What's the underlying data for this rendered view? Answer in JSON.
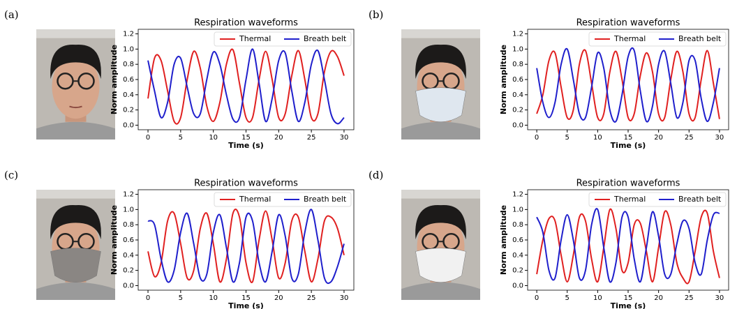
{
  "chart_data": [
    {
      "type": "line",
      "panel": "(a)",
      "title": "Respiration waveforms",
      "xlabel": "Time (s)",
      "ylabel": "Norm amplitude",
      "x": [
        0,
        1,
        2,
        3,
        4,
        5,
        6,
        7,
        8,
        9,
        10,
        11,
        12,
        13,
        14,
        15,
        16,
        17,
        18,
        19,
        20,
        21,
        22,
        23,
        24,
        25,
        26,
        27,
        28,
        29,
        30
      ],
      "series": [
        {
          "name": "Thermal",
          "color": "#e02020",
          "values": [
            0.35,
            0.88,
            0.85,
            0.45,
            0.05,
            0.1,
            0.6,
            0.97,
            0.75,
            0.25,
            0.05,
            0.3,
            0.8,
            0.99,
            0.55,
            0.1,
            0.1,
            0.6,
            0.97,
            0.6,
            0.1,
            0.15,
            0.65,
            0.98,
            0.6,
            0.1,
            0.15,
            0.7,
            0.97,
            0.9,
            0.65
          ]
        },
        {
          "name": "Breath belt",
          "color": "#1f1fcc",
          "values": [
            0.85,
            0.45,
            0.1,
            0.3,
            0.8,
            0.88,
            0.5,
            0.15,
            0.15,
            0.6,
            0.96,
            0.8,
            0.4,
            0.08,
            0.1,
            0.6,
            1.0,
            0.55,
            0.05,
            0.35,
            0.85,
            0.95,
            0.45,
            0.05,
            0.3,
            0.8,
            0.98,
            0.6,
            0.15,
            0.02,
            0.1
          ]
        }
      ],
      "xlim": [
        -1.5,
        31.5
      ],
      "xticks": [
        0,
        5,
        10,
        15,
        20,
        25,
        30
      ],
      "ylim": [
        -0.06,
        1.26
      ],
      "yticks": [
        {
          "value": 0,
          "label": "0.0"
        },
        {
          "value": 0.2,
          "label": "0.2"
        },
        {
          "value": 0.4,
          "label": "0.4"
        },
        {
          "value": 0.6,
          "label": "0.6"
        },
        {
          "value": 0.8,
          "label": "0.8"
        },
        {
          "value": 1,
          "label": "1.0"
        },
        {
          "value": 1.2,
          "label": "1.2"
        }
      ],
      "legend": "upper right",
      "grid": false
    },
    {
      "type": "line",
      "panel": "(b)",
      "title": "Respiration waveforms",
      "xlabel": "Time (s)",
      "ylabel": "Norm amplitude",
      "x": [
        0,
        1,
        2,
        3,
        4,
        5,
        6,
        7,
        8,
        9,
        10,
        11,
        12,
        13,
        14,
        15,
        16,
        17,
        18,
        19,
        20,
        21,
        22,
        23,
        24,
        25,
        26,
        27,
        28,
        29,
        30
      ],
      "series": [
        {
          "name": "Thermal",
          "color": "#e02020",
          "values": [
            0.15,
            0.4,
            0.85,
            0.95,
            0.5,
            0.1,
            0.2,
            0.8,
            0.98,
            0.55,
            0.1,
            0.15,
            0.7,
            0.97,
            0.6,
            0.1,
            0.15,
            0.65,
            0.95,
            0.7,
            0.15,
            0.1,
            0.6,
            0.97,
            0.7,
            0.15,
            0.1,
            0.6,
            0.98,
            0.55,
            0.08
          ]
        },
        {
          "name": "Breath belt",
          "color": "#1f1fcc",
          "values": [
            0.75,
            0.3,
            0.1,
            0.3,
            0.8,
            1.0,
            0.6,
            0.15,
            0.1,
            0.5,
            0.95,
            0.75,
            0.2,
            0.05,
            0.4,
            0.9,
            0.98,
            0.45,
            0.05,
            0.25,
            0.8,
            0.97,
            0.55,
            0.1,
            0.3,
            0.85,
            0.85,
            0.35,
            0.05,
            0.3,
            0.75
          ]
        }
      ],
      "xlim": [
        -1.5,
        31.5
      ],
      "xticks": [
        0,
        5,
        10,
        15,
        20,
        25,
        30
      ],
      "ylim": [
        -0.06,
        1.26
      ],
      "yticks": [
        {
          "value": 0,
          "label": "0.0"
        },
        {
          "value": 0.2,
          "label": "0.2"
        },
        {
          "value": 0.4,
          "label": "0.4"
        },
        {
          "value": 0.6,
          "label": "0.6"
        },
        {
          "value": 0.8,
          "label": "0.8"
        },
        {
          "value": 1,
          "label": "1.0"
        },
        {
          "value": 1.2,
          "label": "1.2"
        }
      ],
      "legend": "upper right",
      "grid": false
    },
    {
      "type": "line",
      "panel": "(c)",
      "title": "Respiration waveforms",
      "xlabel": "Time (s)",
      "ylabel": "Norm amplitude",
      "x": [
        0,
        1,
        2,
        3,
        4,
        5,
        6,
        7,
        8,
        9,
        10,
        11,
        12,
        13,
        14,
        15,
        16,
        17,
        18,
        19,
        20,
        21,
        22,
        23,
        24,
        25,
        26,
        27,
        28,
        29,
        30
      ],
      "series": [
        {
          "name": "Thermal",
          "color": "#e02020",
          "values": [
            0.45,
            0.12,
            0.3,
            0.85,
            0.95,
            0.55,
            0.1,
            0.2,
            0.75,
            0.95,
            0.55,
            0.05,
            0.35,
            0.95,
            0.9,
            0.3,
            0.05,
            0.6,
            0.98,
            0.6,
            0.1,
            0.3,
            0.85,
            0.9,
            0.45,
            0.05,
            0.35,
            0.85,
            0.9,
            0.75,
            0.4
          ]
        },
        {
          "name": "Breath belt",
          "color": "#1f1fcc",
          "values": [
            0.85,
            0.8,
            0.35,
            0.05,
            0.2,
            0.7,
            0.95,
            0.55,
            0.1,
            0.15,
            0.7,
            0.93,
            0.5,
            0.05,
            0.3,
            0.9,
            0.85,
            0.3,
            0.05,
            0.45,
            0.93,
            0.65,
            0.1,
            0.15,
            0.7,
            1.0,
            0.6,
            0.1,
            0.05,
            0.25,
            0.55
          ]
        }
      ],
      "xlim": [
        -1.5,
        31.5
      ],
      "xticks": [
        0,
        5,
        10,
        15,
        20,
        25,
        30
      ],
      "ylim": [
        -0.06,
        1.26
      ],
      "yticks": [
        {
          "value": 0,
          "label": "0.0"
        },
        {
          "value": 0.2,
          "label": "0.2"
        },
        {
          "value": 0.4,
          "label": "0.4"
        },
        {
          "value": 0.6,
          "label": "0.6"
        },
        {
          "value": 0.8,
          "label": "0.8"
        },
        {
          "value": 1,
          "label": "1.0"
        },
        {
          "value": 1.2,
          "label": "1.2"
        }
      ],
      "legend": "upper right",
      "grid": false
    },
    {
      "type": "line",
      "panel": "(d)",
      "title": "Respiration waveforms",
      "xlabel": "Time (s)",
      "ylabel": "Norm amplitude",
      "x": [
        0,
        1,
        2,
        3,
        4,
        5,
        6,
        7,
        8,
        9,
        10,
        11,
        12,
        13,
        14,
        15,
        16,
        17,
        18,
        19,
        20,
        21,
        22,
        23,
        24,
        25,
        26,
        27,
        28,
        29,
        30
      ],
      "series": [
        {
          "name": "Thermal",
          "color": "#e02020",
          "values": [
            0.15,
            0.6,
            0.88,
            0.85,
            0.4,
            0.05,
            0.4,
            0.9,
            0.85,
            0.35,
            0.05,
            0.5,
            1.0,
            0.75,
            0.2,
            0.3,
            0.8,
            0.82,
            0.45,
            0.05,
            0.5,
            0.97,
            0.8,
            0.3,
            0.1,
            0.05,
            0.45,
            0.9,
            0.95,
            0.45,
            0.1
          ]
        },
        {
          "name": "Breath belt",
          "color": "#1f1fcc",
          "values": [
            0.9,
            0.7,
            0.2,
            0.1,
            0.6,
            0.93,
            0.6,
            0.1,
            0.2,
            0.8,
            1.0,
            0.5,
            0.05,
            0.3,
            0.9,
            0.9,
            0.35,
            0.05,
            0.5,
            0.97,
            0.65,
            0.15,
            0.15,
            0.55,
            0.85,
            0.75,
            0.3,
            0.15,
            0.6,
            0.93,
            0.95
          ]
        }
      ],
      "xlim": [
        -1.5,
        31.5
      ],
      "xticks": [
        0,
        5,
        10,
        15,
        20,
        25,
        30
      ],
      "ylim": [
        -0.06,
        1.26
      ],
      "yticks": [
        {
          "value": 0,
          "label": "0.0"
        },
        {
          "value": 0.2,
          "label": "0.2"
        },
        {
          "value": 0.4,
          "label": "0.4"
        },
        {
          "value": 0.6,
          "label": "0.6"
        },
        {
          "value": 0.8,
          "label": "0.8"
        },
        {
          "value": 1,
          "label": "1.0"
        },
        {
          "value": 1.2,
          "label": "1.2"
        }
      ],
      "legend": "upper right",
      "grid": false
    }
  ]
}
